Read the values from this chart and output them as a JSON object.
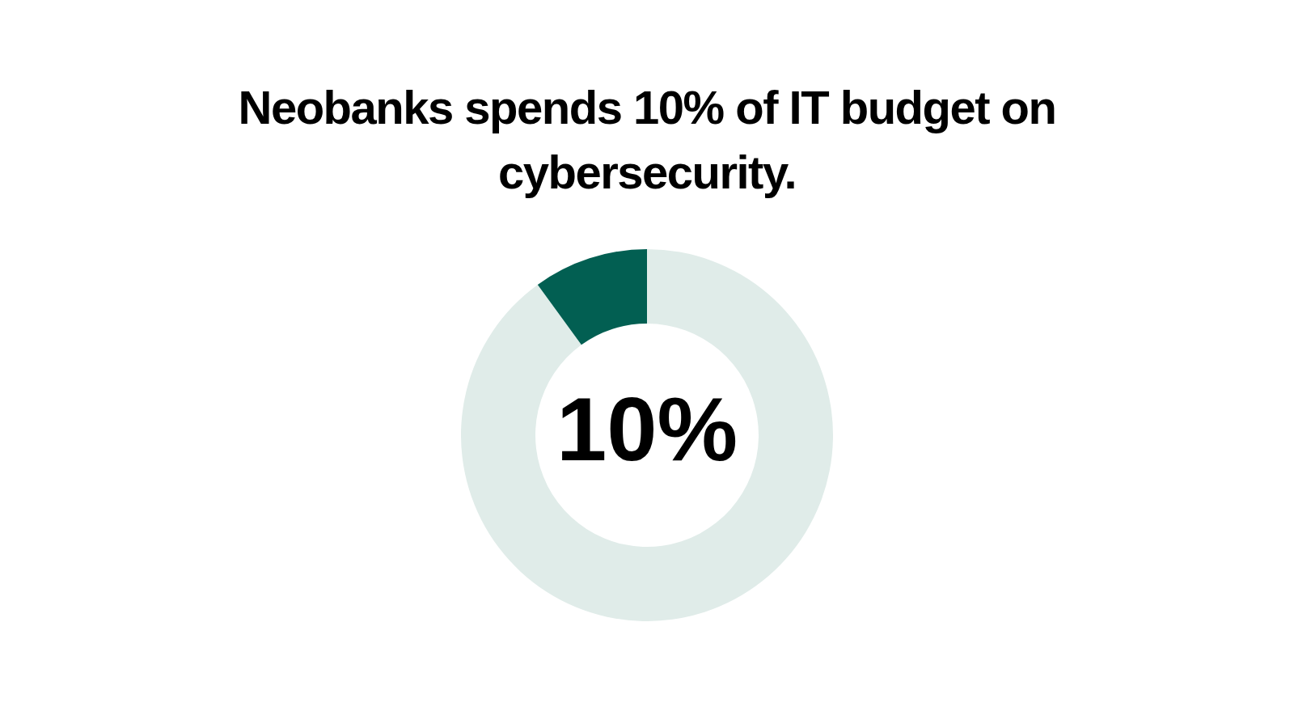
{
  "chart_data": {
    "type": "donut",
    "title": "Neobanks spends 10% of IT budget on cybersecurity.",
    "categories": [
      null,
      null
    ],
    "values": [
      90,
      10
    ],
    "colors": [
      "#e0ece9",
      "#025f52"
    ],
    "value_labels": [
      null,
      "10%"
    ],
    "legend": false
  }
}
